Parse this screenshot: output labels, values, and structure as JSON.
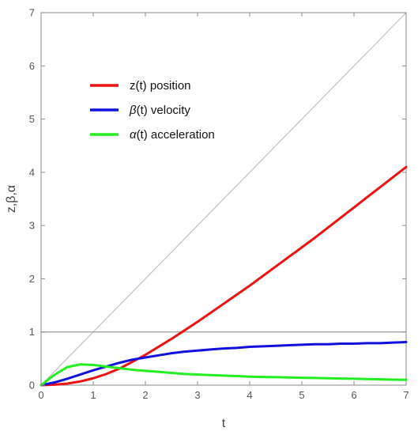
{
  "chart_data": {
    "type": "line",
    "title": "",
    "xlabel": "t",
    "ylabel": "z,β,α",
    "xlim": [
      0,
      7
    ],
    "ylim": [
      0,
      7
    ],
    "xticks": [
      0,
      1,
      2,
      3,
      4,
      5,
      6,
      7
    ],
    "yticks": [
      0,
      1,
      2,
      3,
      4,
      5,
      6,
      7
    ],
    "grid": false,
    "legend_position": "top-left",
    "reference_lines": [
      {
        "kind": "diagonal",
        "points": [
          [
            0,
            0
          ],
          [
            7,
            7
          ]
        ],
        "color": "#b0b0b0"
      },
      {
        "kind": "horizontal",
        "y": 1,
        "color": "#9a9a9a"
      }
    ],
    "series": [
      {
        "name": "z(t) position",
        "color": "#ee1111",
        "x": [
          0,
          0.25,
          0.5,
          0.75,
          1,
          1.25,
          1.5,
          1.75,
          2,
          2.25,
          2.5,
          2.75,
          3,
          3.25,
          3.5,
          3.75,
          4,
          4.25,
          4.5,
          4.75,
          5,
          5.25,
          5.5,
          5.75,
          6,
          6.25,
          6.5,
          6.75,
          7
        ],
        "y": [
          0,
          0.01,
          0.03,
          0.07,
          0.13,
          0.21,
          0.31,
          0.44,
          0.57,
          0.72,
          0.87,
          1.03,
          1.19,
          1.36,
          1.53,
          1.7,
          1.87,
          2.05,
          2.23,
          2.41,
          2.59,
          2.77,
          2.96,
          3.15,
          3.34,
          3.53,
          3.72,
          3.91,
          4.1
        ]
      },
      {
        "name": "β(t) velocity",
        "color": "#1111dd",
        "x": [
          0,
          0.25,
          0.5,
          0.75,
          1,
          1.25,
          1.5,
          1.75,
          2,
          2.25,
          2.5,
          2.75,
          3,
          3.25,
          3.5,
          3.75,
          4,
          4.25,
          4.5,
          4.75,
          5,
          5.25,
          5.5,
          5.75,
          6,
          6.25,
          6.5,
          6.75,
          7
        ],
        "y": [
          0,
          0.05,
          0.12,
          0.2,
          0.28,
          0.35,
          0.42,
          0.48,
          0.52,
          0.56,
          0.6,
          0.63,
          0.65,
          0.67,
          0.69,
          0.7,
          0.72,
          0.73,
          0.74,
          0.75,
          0.76,
          0.77,
          0.77,
          0.78,
          0.78,
          0.79,
          0.79,
          0.8,
          0.81
        ]
      },
      {
        "name": "α(t) acceleration",
        "color": "#22ee22",
        "x": [
          0,
          0.25,
          0.5,
          0.75,
          1,
          1.25,
          1.5,
          1.75,
          2,
          2.25,
          2.5,
          2.75,
          3,
          3.25,
          3.5,
          3.75,
          4,
          4.25,
          4.5,
          4.75,
          5,
          5.25,
          5.5,
          5.75,
          6,
          6.25,
          6.5,
          6.75,
          7
        ],
        "y": [
          0,
          0.19,
          0.34,
          0.39,
          0.38,
          0.35,
          0.32,
          0.29,
          0.27,
          0.25,
          0.23,
          0.21,
          0.2,
          0.19,
          0.18,
          0.17,
          0.16,
          0.155,
          0.15,
          0.145,
          0.14,
          0.135,
          0.13,
          0.125,
          0.12,
          0.115,
          0.11,
          0.105,
          0.1
        ]
      }
    ]
  },
  "legend": [
    {
      "greek": "",
      "rest": "z(t) position"
    },
    {
      "greek": "β",
      "rest": "(t) velocity"
    },
    {
      "greek": "α",
      "rest": "(t) acceleration"
    }
  ]
}
